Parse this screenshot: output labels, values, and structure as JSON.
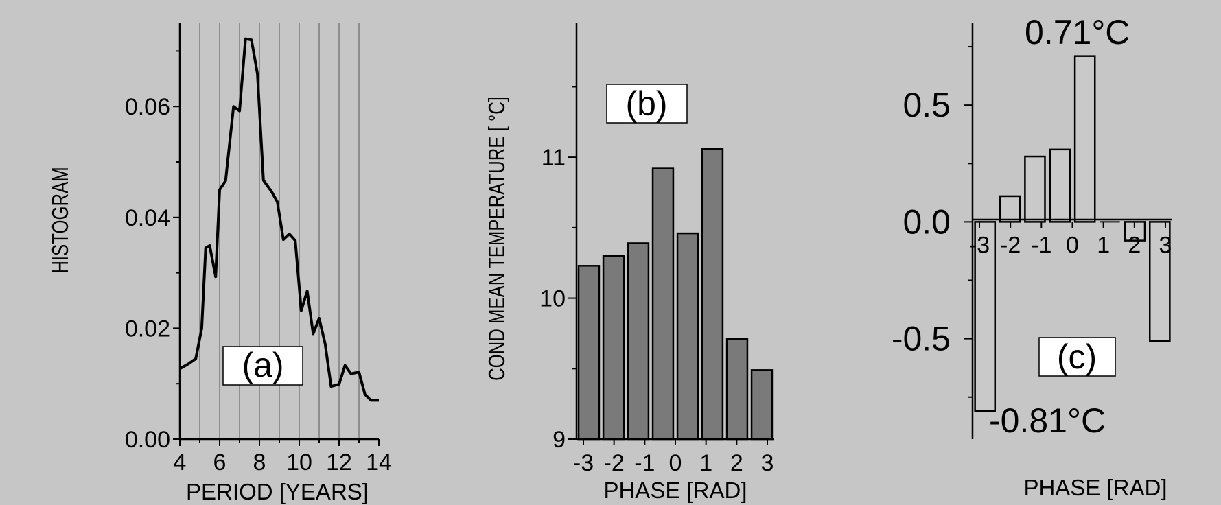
{
  "colors": {
    "background": "#c5c6c5",
    "line": "#000000",
    "bar_b": "#7a7a7a",
    "bar_c": "#c9c9c9",
    "label_box": "#ffffff"
  },
  "chart_data": [
    {
      "id": "a",
      "type": "line",
      "panel_label": "(a)",
      "xlabel": "PERIOD [YEARS]",
      "ylabel": "HISTOGRAM",
      "xlim": [
        4,
        14
      ],
      "ylim": [
        0,
        0.075
      ],
      "grid": "vertical",
      "grid_x": [
        5,
        6,
        7,
        8,
        9,
        10,
        11,
        12,
        13
      ],
      "x_ticks": [
        "4",
        "6",
        "8",
        "10",
        "12",
        "14"
      ],
      "y_ticks": [
        "0.00",
        "0.02",
        "0.04",
        "0.06"
      ],
      "x": [
        4.0,
        4.4,
        4.8,
        5.1,
        5.3,
        5.5,
        5.8,
        6.0,
        6.3,
        6.7,
        7.0,
        7.3,
        7.6,
        7.9,
        8.2,
        8.6,
        8.9,
        9.2,
        9.5,
        9.8,
        10.1,
        10.4,
        10.7,
        11.0,
        11.3,
        11.6,
        12.0,
        12.3,
        12.6,
        13.0,
        13.3,
        13.6,
        14.0
      ],
      "y": [
        0.0127,
        0.0135,
        0.0145,
        0.02,
        0.0345,
        0.0349,
        0.0293,
        0.045,
        0.0466,
        0.06,
        0.0592,
        0.0722,
        0.072,
        0.0659,
        0.0467,
        0.0447,
        0.0428,
        0.036,
        0.037,
        0.0358,
        0.0232,
        0.0267,
        0.019,
        0.0218,
        0.0172,
        0.0095,
        0.0099,
        0.0133,
        0.0118,
        0.0121,
        0.0081,
        0.007,
        0.007
      ]
    },
    {
      "id": "b",
      "type": "bar",
      "panel_label": "(b)",
      "xlabel": "PHASE [RAD]",
      "ylabel": "COND MEAN TEMPERATURE [ °C]",
      "ylim": [
        9,
        11.95
      ],
      "x_ticks": [
        "-3",
        "-2",
        "-1",
        "0",
        "1",
        "2",
        "3"
      ],
      "y_ticks": [
        "9",
        "10",
        "11"
      ],
      "values": [
        10.23,
        10.3,
        10.39,
        10.92,
        10.46,
        11.06,
        9.71,
        9.49
      ]
    },
    {
      "id": "c",
      "type": "bar",
      "panel_label": "(c)",
      "xlabel": "PHASE [RAD]",
      "ylim": [
        -0.93,
        0.85
      ],
      "x_ticks": [
        "-3",
        "-2",
        "-1",
        "0",
        "1",
        "2",
        "3"
      ],
      "y_ticks": [
        "0.5",
        "0.0",
        "-0.5"
      ],
      "values": [
        -0.81,
        0.11,
        0.28,
        0.31,
        0.71,
        0.0,
        -0.08,
        -0.51
      ],
      "annotations": {
        "max": "0.71°C",
        "min": "-0.81°C"
      }
    }
  ]
}
